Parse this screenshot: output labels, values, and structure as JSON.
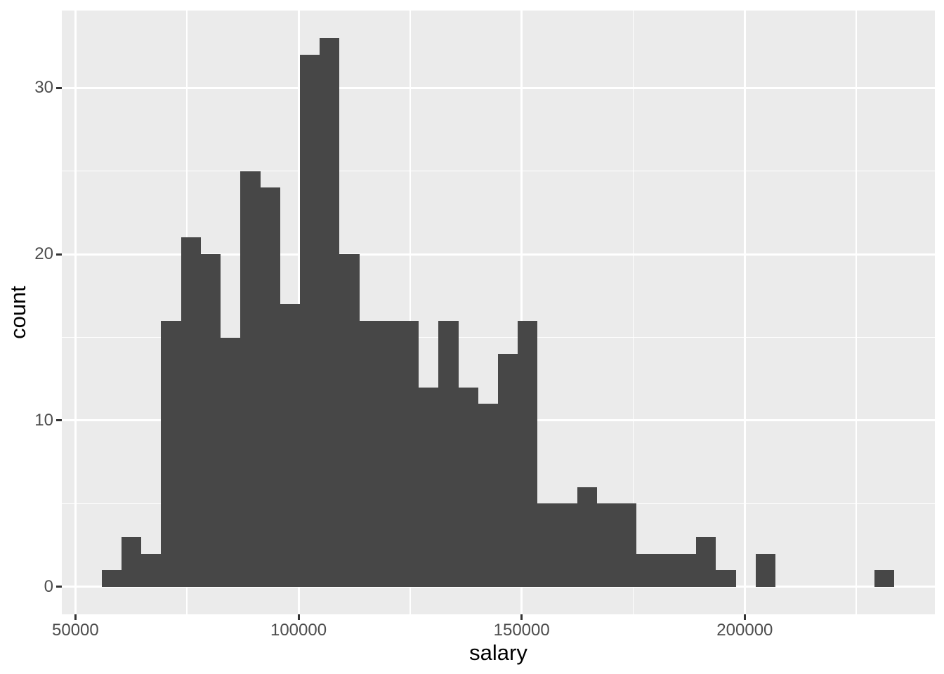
{
  "chart_data": {
    "type": "bar",
    "subtype": "histogram",
    "title": "",
    "xlabel": "salary",
    "ylabel": "count",
    "x_ticks": [
      50000,
      100000,
      150000,
      200000
    ],
    "x_tick_labels": [
      "50000",
      "100000",
      "150000",
      "200000"
    ],
    "y_ticks": [
      0,
      10,
      20,
      30
    ],
    "y_tick_labels": [
      "0",
      "10",
      "20",
      "30"
    ],
    "x_minor_gridlines": [
      75000,
      125000,
      175000,
      225000
    ],
    "y_minor_gridlines": [
      5,
      15,
      25
    ],
    "xlim": [
      46950,
      242600
    ],
    "ylim": [
      -1.65,
      34.65
    ],
    "bin_start": 55900,
    "bin_width": 4440,
    "counts": [
      1,
      3,
      2,
      16,
      21,
      20,
      15,
      25,
      24,
      17,
      32,
      33,
      20,
      16,
      16,
      16,
      12,
      16,
      12,
      11,
      14,
      16,
      5,
      5,
      6,
      5,
      5,
      2,
      2,
      2,
      3,
      1,
      0,
      2,
      0,
      0,
      0,
      0,
      0,
      1
    ],
    "grid": "on",
    "legend": "none",
    "colors": {
      "bar_fill": "#474747",
      "panel_background": "#EBEBEB",
      "gridline": "#FFFFFF",
      "tick_text": "#4D4D4D",
      "axis_title_text": "#000000",
      "tick_mark": "#333333",
      "figure_background": "#FFFFFF"
    }
  }
}
